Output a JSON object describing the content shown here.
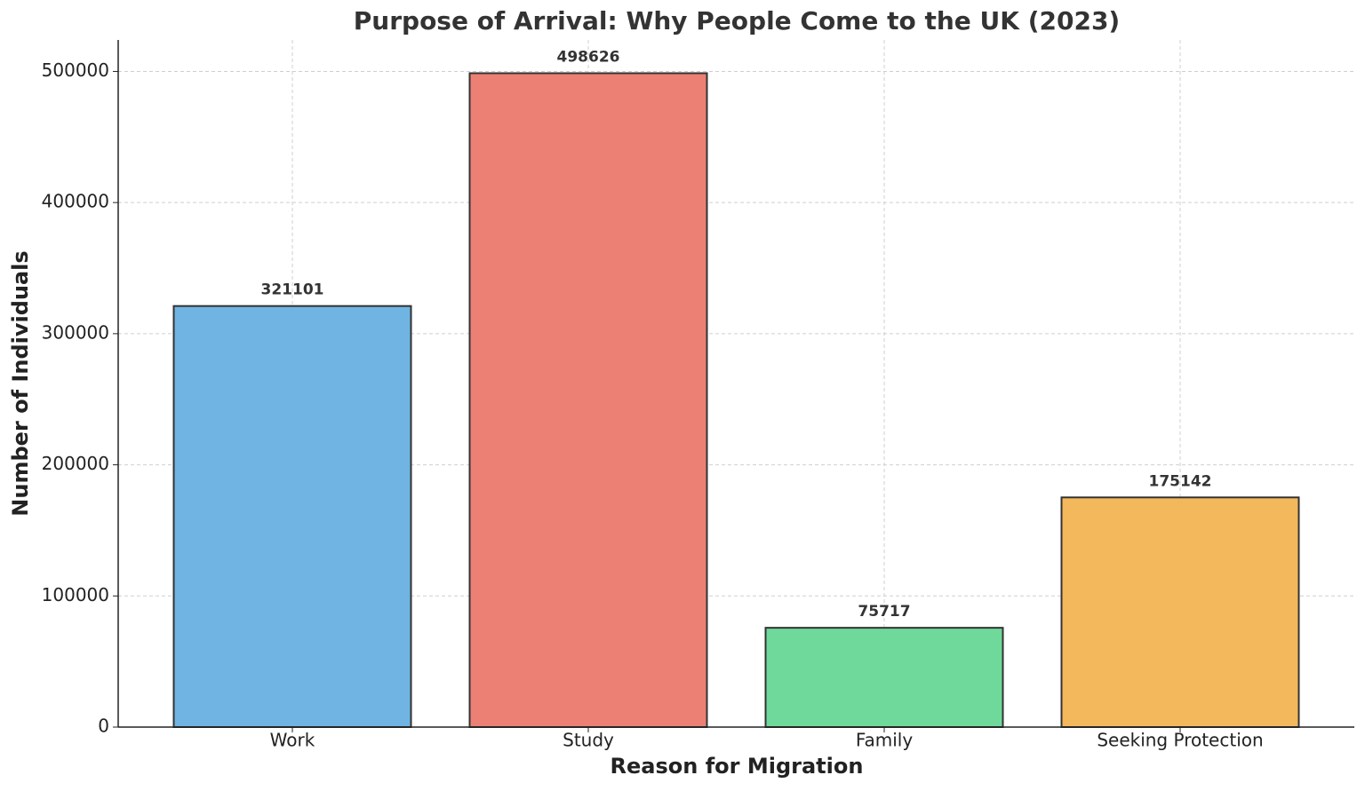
{
  "chart_data": {
    "type": "bar",
    "title": "Purpose of Arrival: Why People Come to the UK (2023)",
    "x_label": "Reason for Migration",
    "y_label": "Number of Individuals",
    "categories": [
      "Work",
      "Study",
      "Family",
      "Seeking Protection"
    ],
    "values": [
      321101,
      498626,
      75717,
      175142
    ],
    "colors": [
      "#6fb4e3",
      "#ec8074",
      "#6fd99b",
      "#f3b85b"
    ],
    "ylim": [
      0,
      524000
    ],
    "yticks": [
      0,
      100000,
      200000,
      300000,
      400000,
      500000
    ],
    "grid": true
  }
}
